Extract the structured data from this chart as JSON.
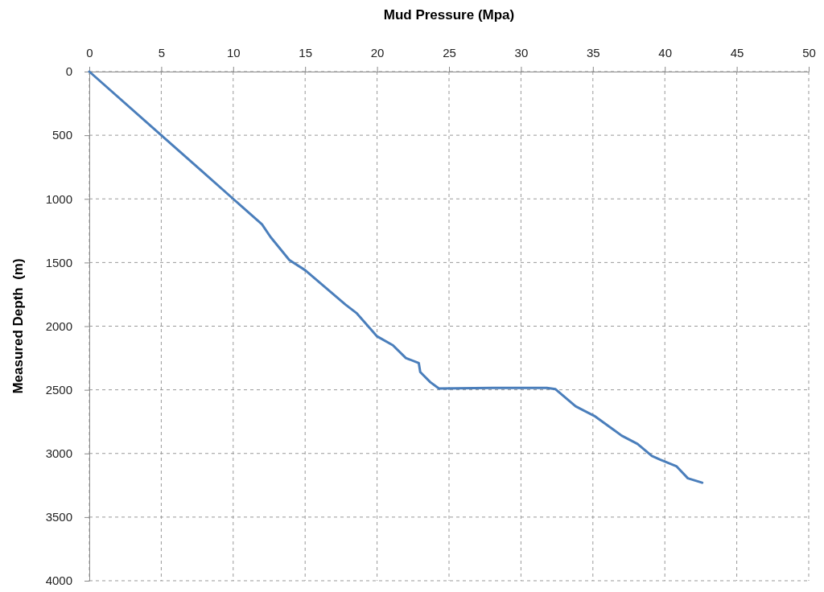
{
  "chart_data": {
    "type": "line",
    "xlabel": "Mud Pressure (Mpa)",
    "ylabel": "Measured Depth  (m)",
    "xlim": [
      0,
      50
    ],
    "xticks": [
      0,
      5,
      10,
      15,
      20,
      25,
      30,
      35,
      40,
      45,
      50
    ],
    "ylim": [
      4000,
      0
    ],
    "yticks": [
      0,
      500,
      1000,
      1500,
      2000,
      2500,
      3000,
      3500,
      4000
    ],
    "grid": true,
    "marker": "none",
    "line_style": "solid",
    "series": [
      {
        "color": "#4a7ebb",
        "x": [
          0,
          5,
          10,
          12,
          12.6,
          13.9,
          15,
          17.8,
          18.6,
          20,
          21.1,
          22,
          22.9,
          23,
          23.7,
          24.3,
          28,
          31.8,
          32.4,
          33.8,
          35.1,
          37,
          38.1,
          39.1,
          39.7,
          40.8,
          41.6,
          42.6
        ],
        "values": [
          0,
          500,
          1000,
          1200,
          1300,
          1480,
          1560,
          1830,
          1900,
          2080,
          2150,
          2250,
          2290,
          2360,
          2440,
          2490,
          2485,
          2485,
          2495,
          2630,
          2705,
          2860,
          2925,
          3020,
          3050,
          3100,
          3195,
          3230
        ]
      }
    ]
  }
}
